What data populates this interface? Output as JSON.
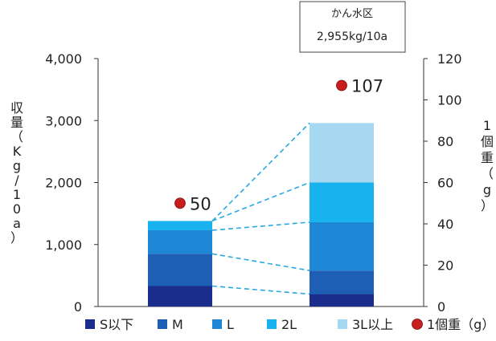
{
  "chart_data": {
    "type": "bar",
    "stacked": true,
    "categories": [
      "",
      ""
    ],
    "y_left": {
      "label": "収量（Kg/10a）",
      "ylim": [
        0,
        4000
      ],
      "ticks": [
        "0",
        "1,000",
        "2,000",
        "3,000",
        "4,000"
      ],
      "tick_values": [
        0,
        1000,
        2000,
        3000,
        4000
      ]
    },
    "y_right": {
      "label": "1個重（g）",
      "ylim": [
        0,
        120
      ],
      "ticks": [
        "0",
        "20",
        "40",
        "60",
        "80",
        "100",
        "120"
      ],
      "tick_values": [
        0,
        20,
        40,
        60,
        80,
        100,
        120
      ]
    },
    "series": [
      {
        "name": "S以下",
        "color": "#1a2d8c",
        "values": [
          330,
          200
        ]
      },
      {
        "name": "M",
        "color": "#1e5fb6",
        "values": [
          520,
          380
        ]
      },
      {
        "name": "L",
        "color": "#1f88d6",
        "values": [
          380,
          780
        ]
      },
      {
        "name": "2L",
        "color": "#18b2ef",
        "values": [
          150,
          640
        ]
      },
      {
        "name": "3L以上",
        "color": "#a7d8f2",
        "values": [
          0,
          960
        ]
      }
    ],
    "line_series": {
      "name": "1個重（g）",
      "axis": "right",
      "color": "#c81e1e",
      "values": [
        50,
        107
      ],
      "labels": [
        "50",
        "107"
      ]
    },
    "annotation": {
      "title": "かん水区",
      "value": "2,955kg/10a"
    },
    "legend": {
      "placement": "bottom",
      "items": [
        {
          "label": "S以下",
          "color": "#1a2d8c",
          "shape": "square"
        },
        {
          "label": "M",
          "color": "#1e5fb6",
          "shape": "square"
        },
        {
          "label": "L",
          "color": "#1f88d6",
          "shape": "square"
        },
        {
          "label": "2L",
          "color": "#18b2ef",
          "shape": "square"
        },
        {
          "label": "3L以上",
          "color": "#a7d8f2",
          "shape": "square"
        },
        {
          "label": "1個重（g）",
          "color": "#c81e1e",
          "shape": "circle"
        }
      ]
    },
    "grid": false
  }
}
